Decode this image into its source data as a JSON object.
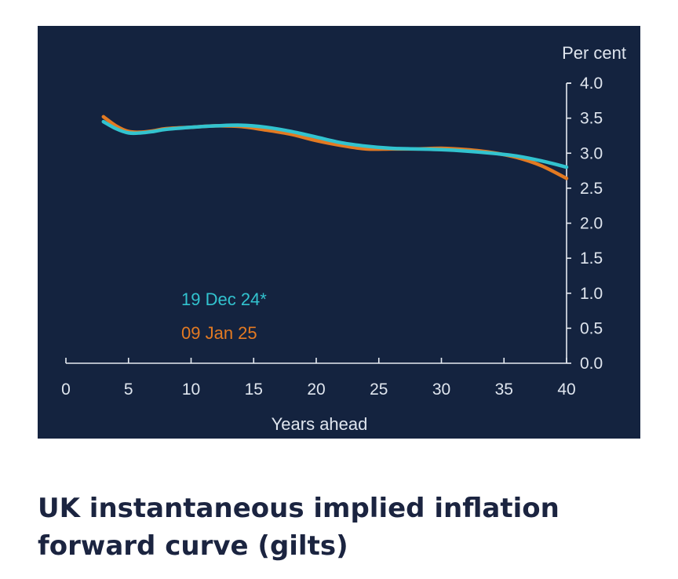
{
  "caption": "UK instantaneous implied inflation forward curve (gilts)",
  "colors": {
    "panel_background": "#14233f",
    "axis": "#e6ebf2",
    "text": "#dfe5ee",
    "series_dec": "#32c3cf",
    "series_jan": "#e37a22"
  },
  "chart_data": {
    "type": "line",
    "xlabel": "Years ahead",
    "ylabel": "Per cent",
    "xlim": [
      0,
      40
    ],
    "ylim": [
      0,
      4.0
    ],
    "x_ticks": [
      "0",
      "5",
      "10",
      "15",
      "20",
      "25",
      "30",
      "35",
      "40"
    ],
    "y_ticks": [
      "0.0",
      "0.5",
      "1.0",
      "1.5",
      "2.0",
      "2.5",
      "3.0",
      "3.5",
      "4.0"
    ],
    "y_axis_position": "right",
    "grid": false,
    "legend_placement": "inside-left",
    "series": [
      {
        "name": "19 Dec 24*",
        "color": "#32c3cf",
        "x": [
          3,
          4,
          5,
          6,
          7,
          8,
          10,
          12,
          14,
          16,
          18,
          20,
          22,
          24,
          26,
          28,
          30,
          32,
          34,
          36,
          38,
          40
        ],
        "y": [
          3.45,
          3.35,
          3.29,
          3.29,
          3.31,
          3.34,
          3.37,
          3.39,
          3.4,
          3.37,
          3.31,
          3.23,
          3.15,
          3.1,
          3.07,
          3.06,
          3.05,
          3.03,
          3.0,
          2.96,
          2.89,
          2.8
        ]
      },
      {
        "name": "09 Jan 25",
        "color": "#e37a22",
        "x": [
          3,
          4,
          5,
          6,
          7,
          8,
          10,
          12,
          14,
          16,
          18,
          20,
          22,
          24,
          26,
          28,
          30,
          32,
          34,
          36,
          38,
          40
        ],
        "y": [
          3.52,
          3.39,
          3.31,
          3.3,
          3.32,
          3.35,
          3.37,
          3.39,
          3.38,
          3.33,
          3.27,
          3.18,
          3.11,
          3.06,
          3.06,
          3.06,
          3.07,
          3.05,
          3.01,
          2.94,
          2.82,
          2.64
        ]
      }
    ]
  }
}
